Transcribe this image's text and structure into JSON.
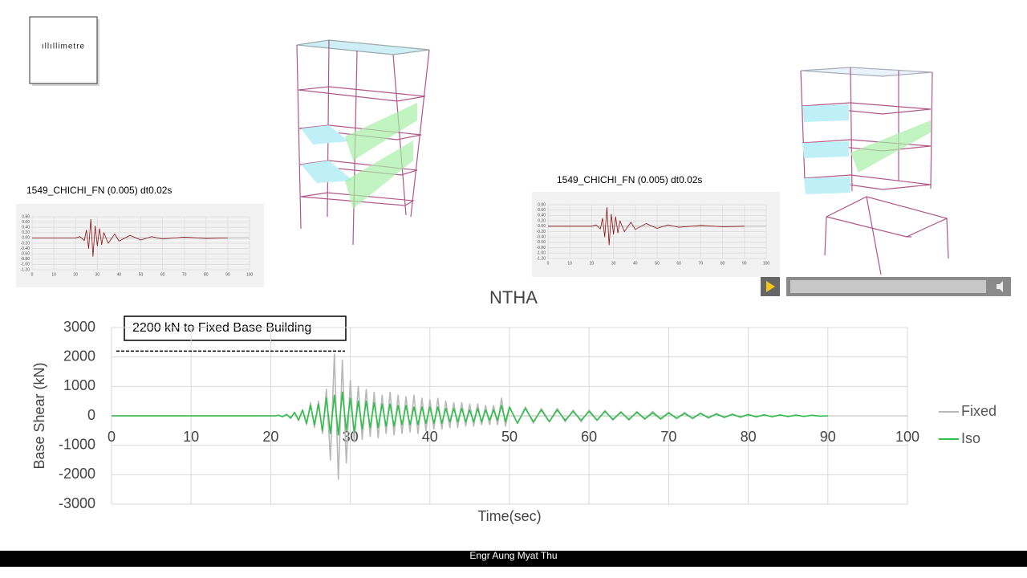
{
  "logo": "ıllıllimetre",
  "footer": "Engr Aung Myat Thu",
  "chart_data": [
    {
      "type": "line",
      "title": "NTHA",
      "x_label": "Time(sec)",
      "y_label": "Base Shear (kN)",
      "annotation": {
        "text": "2200 kN to Fixed Base Building",
        "value": 2200
      },
      "xlim": [
        0,
        100
      ],
      "ylim": [
        -3000,
        3000
      ],
      "xticks": [
        0,
        10,
        20,
        30,
        40,
        50,
        60,
        70,
        80,
        90,
        100
      ],
      "yticks": [
        3000,
        2000,
        1000,
        0,
        -1000,
        -2000,
        -3000
      ],
      "grid": true,
      "legend": "right",
      "x": [
        0,
        20,
        20.5,
        21,
        21.5,
        22,
        22.5,
        23,
        23.5,
        24,
        24.5,
        25,
        25.5,
        26,
        26.5,
        27,
        27.5,
        28,
        28.5,
        29,
        29.5,
        30,
        30.5,
        31,
        31.5,
        32,
        32.5,
        33,
        33.5,
        34,
        34.5,
        35,
        35.5,
        36,
        36.5,
        37,
        37.5,
        38,
        38.5,
        39,
        39.5,
        40,
        40.5,
        41,
        41.5,
        42,
        42.5,
        43,
        43.5,
        44,
        44.5,
        45,
        45.5,
        46,
        46.5,
        47,
        47.5,
        48,
        48.5,
        49,
        49.5,
        50,
        51,
        52,
        53,
        54,
        55,
        56,
        57,
        58,
        59,
        60,
        61,
        62,
        63,
        64,
        65,
        66,
        67,
        68,
        69,
        70,
        71,
        72,
        73,
        74,
        75,
        76,
        77,
        78,
        79,
        80,
        81,
        82,
        83,
        84,
        85,
        86,
        87,
        88,
        89,
        90
      ],
      "series": [
        {
          "name": "Fixed",
          "color": "#b8b8b8",
          "values": [
            0,
            0,
            0,
            10,
            -20,
            40,
            -60,
            100,
            -150,
            200,
            -300,
            450,
            -400,
            500,
            -600,
            900,
            -1500,
            2100,
            -2150,
            1900,
            -1600,
            1200,
            -900,
            1000,
            -800,
            900,
            -700,
            800,
            -750,
            700,
            -600,
            800,
            -650,
            700,
            -600,
            650,
            -550,
            700,
            -600,
            600,
            -500,
            550,
            -450,
            600,
            -450,
            500,
            -400,
            450,
            -400,
            450,
            -350,
            400,
            -350,
            400,
            -300,
            350,
            -300,
            350,
            -300,
            600,
            -350,
            300,
            -250,
            300,
            -250,
            250,
            -200,
            250,
            -200,
            200,
            -200,
            200,
            -150,
            180,
            -150,
            150,
            -150,
            150,
            -120,
            150,
            -120,
            120,
            -100,
            120,
            -100,
            100,
            -80,
            80,
            -60,
            60,
            -50,
            50,
            -40,
            40,
            -30,
            30,
            -30,
            30,
            -20,
            20,
            -10,
            0
          ]
        },
        {
          "name": "Iso",
          "color": "#2fbf4a",
          "values": [
            0,
            0,
            0,
            20,
            -30,
            50,
            -80,
            120,
            -150,
            200,
            -250,
            350,
            -300,
            400,
            -500,
            600,
            -600,
            700,
            -650,
            800,
            -500,
            600,
            -550,
            500,
            -450,
            500,
            -400,
            450,
            -400,
            400,
            -350,
            400,
            -350,
            350,
            -300,
            350,
            -300,
            300,
            -300,
            300,
            -250,
            300,
            -250,
            300,
            -250,
            250,
            -200,
            250,
            -200,
            250,
            -200,
            200,
            -200,
            250,
            -200,
            200,
            -150,
            200,
            -150,
            350,
            -200,
            300,
            -250,
            250,
            -200,
            200,
            -200,
            200,
            -150,
            150,
            -150,
            150,
            -150,
            150,
            -120,
            120,
            -120,
            120,
            -100,
            100,
            -100,
            100,
            -80,
            80,
            -80,
            80,
            -60,
            60,
            -50,
            50,
            -40,
            40,
            -30,
            30,
            -30,
            30,
            -20,
            20,
            -20,
            20,
            -10,
            0
          ]
        }
      ]
    },
    {
      "type": "line",
      "title": "1549_CHICHI_FN (0.005) dt0.02s",
      "color": "#8b1010",
      "xlim": [
        0,
        100
      ],
      "ylim": [
        -1.2,
        0.8
      ],
      "xticks": [
        0,
        10,
        20,
        30,
        40,
        50,
        60,
        70,
        80,
        90,
        100
      ],
      "yticks": [
        {
          "value": 0.8,
          "label": "0.80"
        },
        {
          "value": 0.6,
          "label": "0.60"
        },
        {
          "value": 0.4,
          "label": "0.40"
        },
        {
          "value": 0.2,
          "label": "0.20"
        },
        {
          "value": 0,
          "label": "0.00"
        },
        {
          "value": -0.2,
          "label": "-0.20"
        },
        {
          "value": -0.4,
          "label": "-0.40"
        },
        {
          "value": -0.6,
          "label": "-0.60"
        },
        {
          "value": -0.8,
          "label": "-0.80"
        },
        {
          "value": -1,
          "label": "-1.00"
        },
        {
          "value": -1.2,
          "label": "-1.20"
        }
      ],
      "grid": true,
      "x": [
        0,
        20,
        22,
        24,
        25,
        26,
        27,
        28,
        29,
        30,
        31,
        32,
        33,
        35,
        38,
        40,
        45,
        50,
        55,
        60,
        70,
        80,
        90
      ],
      "values": [
        0,
        0,
        0.05,
        -0.1,
        0.3,
        -0.4,
        0.7,
        -0.7,
        0.45,
        -0.3,
        0.35,
        -0.25,
        0.2,
        -0.2,
        0.15,
        -0.12,
        0.1,
        -0.08,
        0.05,
        -0.04,
        0.03,
        -0.02,
        0
      ]
    },
    {
      "type": "line",
      "title": "1549_CHICHI_FN (0.005) dt0.02s",
      "color": "#8b1010",
      "xlim": [
        0,
        100
      ],
      "ylim": [
        -1.2,
        0.8
      ],
      "xticks": [
        0,
        10,
        20,
        30,
        40,
        50,
        60,
        70,
        80,
        90,
        100
      ],
      "yticks": [
        {
          "value": 0.8,
          "label": "0.80"
        },
        {
          "value": 0.6,
          "label": "0.60"
        },
        {
          "value": 0.4,
          "label": "0.40"
        },
        {
          "value": 0.2,
          "label": "0.20"
        },
        {
          "value": 0,
          "label": "0.00"
        },
        {
          "value": -0.2,
          "label": "-0.20"
        },
        {
          "value": -0.4,
          "label": "-0.40"
        },
        {
          "value": -0.6,
          "label": "-0.60"
        },
        {
          "value": -0.8,
          "label": "-0.80"
        },
        {
          "value": -1,
          "label": "-1.00"
        },
        {
          "value": -1.2,
          "label": "-1.20"
        }
      ],
      "grid": true,
      "x": [
        0,
        20,
        22,
        24,
        25,
        26,
        27,
        28,
        29,
        30,
        31,
        32,
        33,
        35,
        38,
        40,
        45,
        50,
        55,
        60,
        70,
        80,
        90
      ],
      "values": [
        0,
        0,
        0.05,
        -0.1,
        0.3,
        -0.4,
        0.7,
        -0.7,
        0.45,
        -0.3,
        0.35,
        -0.25,
        0.2,
        -0.2,
        0.15,
        -0.12,
        0.1,
        -0.08,
        0.05,
        -0.04,
        0.03,
        -0.02,
        0
      ]
    }
  ]
}
